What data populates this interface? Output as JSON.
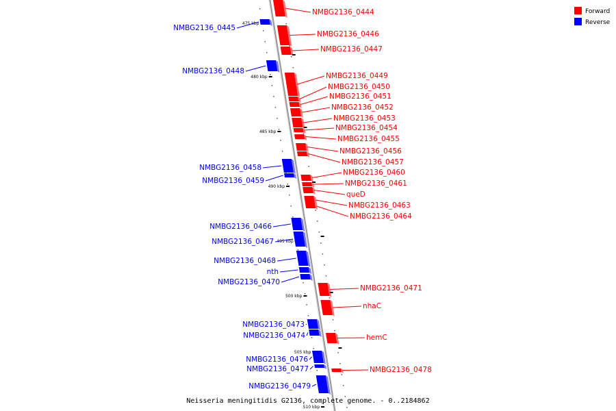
{
  "legend": {
    "forward_label": "Forward",
    "reverse_label": "Reverse"
  },
  "colors": {
    "forward": "#ff0000",
    "reverse": "#0000ff",
    "backbone": "#888888"
  },
  "caption": "Neisseria meningitidis G2136, complete genome. - 0..2184862",
  "kbp_ticks": [
    "475 kbp",
    "480 kbp",
    "485 kbp",
    "490 kbp",
    "495 kbp",
    "500 kbp",
    "505 kbp",
    "510 kbp"
  ],
  "forward_genes": [
    "NMBG2136_0444",
    "NMBG2136_0446",
    "NMBG2136_0447",
    "NMBG2136_0449",
    "NMBG2136_0450",
    "NMBG2136_0451",
    "NMBG2136_0452",
    "NMBG2136_0453",
    "NMBG2136_0454",
    "NMBG2136_0455",
    "NMBG2136_0456",
    "NMBG2136_0457",
    "NMBG2136_0460",
    "NMBG2136_0461",
    "queD",
    "NMBG2136_0463",
    "NMBG2136_0464",
    "NMBG2136_0471",
    "nhaC",
    "hemC",
    "NMBG2136_0478"
  ],
  "reverse_genes": [
    "NMBG2136_0445",
    "NMBG2136_0448",
    "NMBG2136_0458",
    "NMBG2136_0459",
    "NMBG2136_0466",
    "NMBG2136_0467",
    "NMBG2136_0468",
    "nth",
    "NMBG2136_0470",
    "NMBG2136_0473",
    "NMBG2136_0474",
    "NMBG2136_0476",
    "NMBG2136_0477",
    "NMBG2136_0479"
  ]
}
